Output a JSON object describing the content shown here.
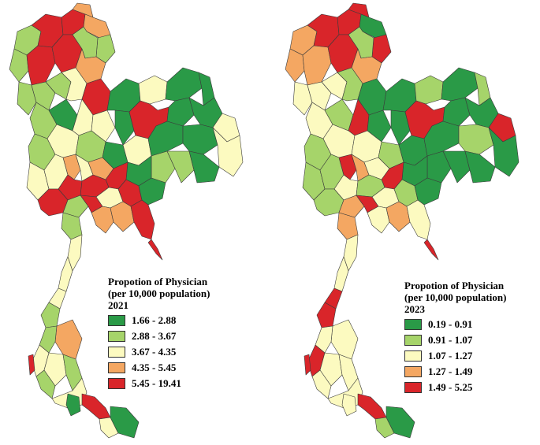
{
  "colors": {
    "class1": "#2a9a47",
    "class2": "#a6d46a",
    "class3": "#fcfac0",
    "class4": "#f4a762",
    "class5": "#d9252a"
  },
  "maps": [
    {
      "year": "2021",
      "title_line1": "Propotion of Physician",
      "title_line2": "(per 10,000 population)",
      "legend": [
        {
          "label": "1.66 - 2.88",
          "color": "#2a9a47"
        },
        {
          "label": "2.88 - 3.67",
          "color": "#a6d46a"
        },
        {
          "label": "3.67 - 4.35",
          "color": "#fcfac0"
        },
        {
          "label": "4.35 - 5.45",
          "color": "#f4a762"
        },
        {
          "label": "5.45 - 19.41",
          "color": "#d9252a"
        }
      ]
    },
    {
      "year": "2023",
      "title_line1": "Propotion of Physician",
      "title_line2": "(per 10,000 population)",
      "legend": [
        {
          "label": "0.19 - 0.91",
          "color": "#2a9a47"
        },
        {
          "label": "0.91 - 1.07",
          "color": "#a6d46a"
        },
        {
          "label": "1.07 - 1.27",
          "color": "#fcfac0"
        },
        {
          "label": "1.27 - 1.49",
          "color": "#f4a762"
        },
        {
          "label": "1.49 - 5.25",
          "color": "#d9252a"
        }
      ]
    }
  ]
}
